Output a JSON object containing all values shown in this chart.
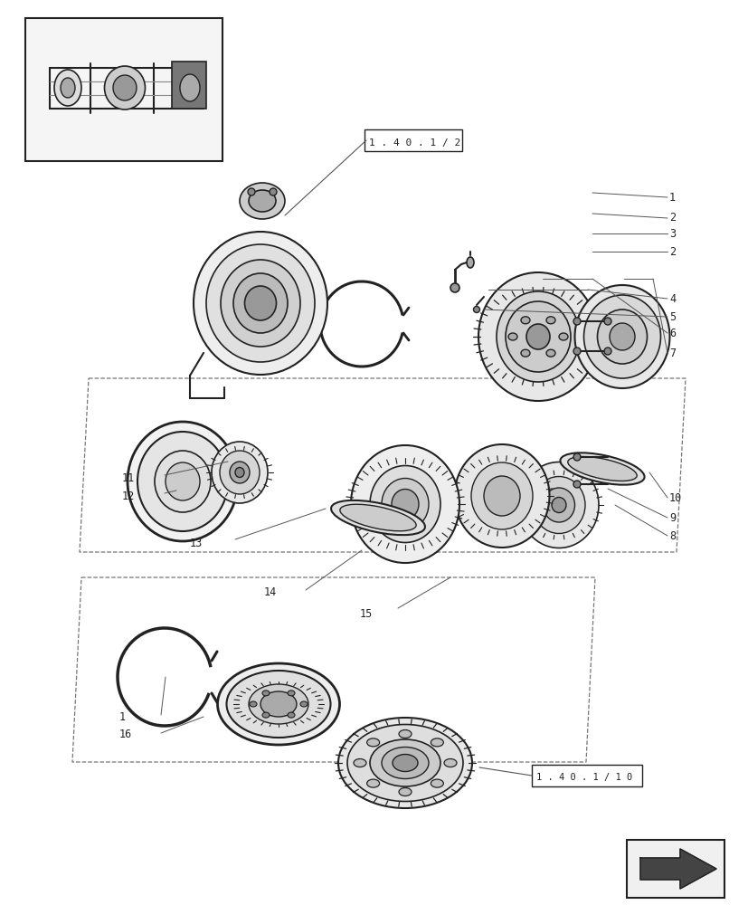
{
  "bg_color": "#ffffff",
  "line_color": "#555555",
  "dark_color": "#222222",
  "label_color": "#333333",
  "ref_box_1": "1.40.1/2",
  "ref_box_2": "1.40.1/10",
  "figsize": [
    8.28,
    10.0
  ],
  "dpi": 100
}
